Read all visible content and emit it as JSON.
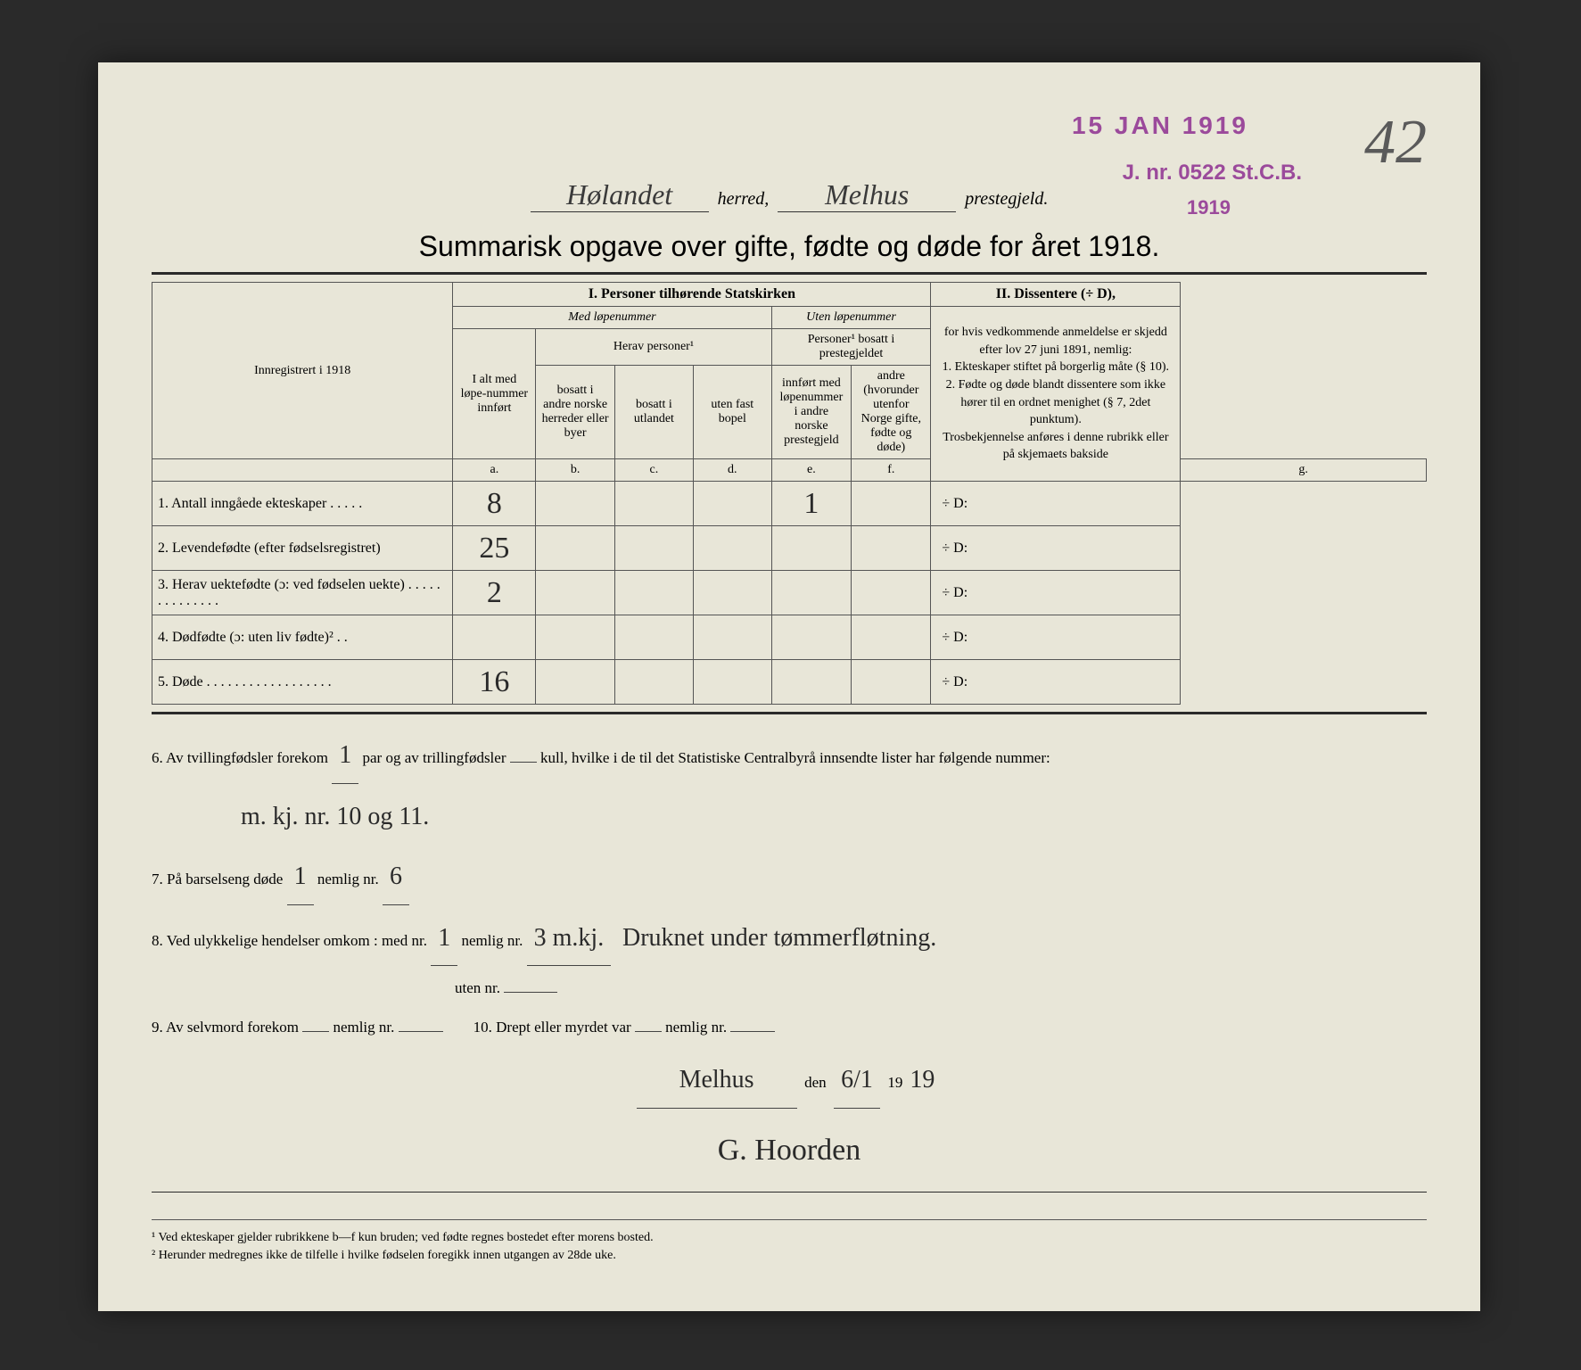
{
  "stamps": {
    "date": "15 JAN 1919",
    "jnr": "J. nr. 0522 St.C.B.",
    "year": "1919"
  },
  "page_number": "42",
  "header": {
    "herred_value": "Hølandet",
    "herred_label": "herred,",
    "preste_value": "Melhus",
    "preste_label": "prestegjeld."
  },
  "title": "Summarisk opgave over gifte, fødte og døde for året 1918.",
  "table": {
    "section1_title": "I. Personer tilhørende Statskirken",
    "section2_title": "II. Dissentere (÷ D),",
    "med_lope": "Med løpenummer",
    "uten_lope": "Uten løpenummer",
    "innreg": "Innregistrert i 1918",
    "col_a_head": "I alt med løpe-nummer innført",
    "herav": "Herav personer¹",
    "personer_bosatt": "Personer¹ bosatt i prestegjeldet",
    "col_b": "bosatt i andre norske herreder eller byer",
    "col_c": "bosatt i utlandet",
    "col_d": "uten fast bopel",
    "col_e": "innført med løpenummer i andre norske prestegjeld",
    "col_f": "andre (hvorunder utenfor Norge gifte, fødte og døde)",
    "dissenter_text": "for hvis vedkommende anmeldelse er skjedd efter lov 27 juni 1891, nemlig:\n1. Ekteskaper stiftet på borgerlig måte (§ 10).\n2. Fødte og døde blandt dissentere som ikke hører til en ordnet menighet (§ 7, 2det punktum).\nTrosbekjennelse anføres i denne rubrikk eller på skjemaets bakside",
    "sub_a": "a.",
    "sub_b": "b.",
    "sub_c": "c.",
    "sub_d": "d.",
    "sub_e": "e.",
    "sub_f": "f.",
    "sub_g": "g.",
    "rows": [
      {
        "label": "1. Antall inngåede ekteskaper . . . . .",
        "a": "8",
        "b": "",
        "c": "",
        "d": "",
        "e": "1",
        "f": "",
        "g": "÷ D:"
      },
      {
        "label": "2. Levendefødte (efter fødselsregistret)",
        "a": "25",
        "b": "",
        "c": "",
        "d": "",
        "e": "",
        "f": "",
        "g": "÷ D:"
      },
      {
        "label": "3. Herav uektefødte (ɔ: ved fødselen uekte) . . . . . . . . . . . . . .",
        "a": "2",
        "b": "",
        "c": "",
        "d": "",
        "e": "",
        "f": "",
        "g": "÷ D:"
      },
      {
        "label": "4. Dødfødte (ɔ: uten liv fødte)² . .",
        "a": "",
        "b": "",
        "c": "",
        "d": "",
        "e": "",
        "f": "",
        "g": "÷ D:"
      },
      {
        "label": "5. Døde . . . . . . . . . . . . . . . . . .",
        "a": "16",
        "b": "",
        "c": "",
        "d": "",
        "e": "",
        "f": "",
        "g": "÷ D:"
      }
    ]
  },
  "notes": {
    "line6a": "6. Av tvillingfødsler forekom",
    "line6_twin": "1",
    "line6b": "par og av trillingfødsler",
    "line6_trip": "",
    "line6c": "kull, hvilke i de til det Statistiske Centralbyrå innsendte lister har følgende nummer:",
    "line6_nums": "m. kj. nr. 10 og 11.",
    "line7a": "7. På barselseng døde",
    "line7_val": "1",
    "line7b": "nemlig nr.",
    "line7_nr": "6",
    "line8a": "8. Ved ulykkelige hendelser omkom : med nr.",
    "line8_med": "1",
    "line8b": "nemlig nr.",
    "line8_nr": "3 m.kj.",
    "line8_desc": "Druknet under tømmerfløtning.",
    "line8c": "uten nr.",
    "line9a": "9. Av selvmord forekom",
    "line9_val": "",
    "line9b": "nemlig nr.",
    "line10a": "10. Drept eller myrdet var",
    "line10_val": "",
    "line10b": "nemlig nr.",
    "place": "Melhus",
    "den": "den",
    "date_day": "6/1",
    "year_prefix": "19",
    "year_suffix": "19",
    "signature": "G. Hoorden"
  },
  "footnotes": {
    "f1": "¹ Ved ekteskaper gjelder rubrikkene b—f kun bruden; ved fødte regnes bostedet efter morens bosted.",
    "f2": "² Herunder medregnes ikke de tilfelle i hvilke fødselen foregikk innen utgangen av 28de uke."
  }
}
